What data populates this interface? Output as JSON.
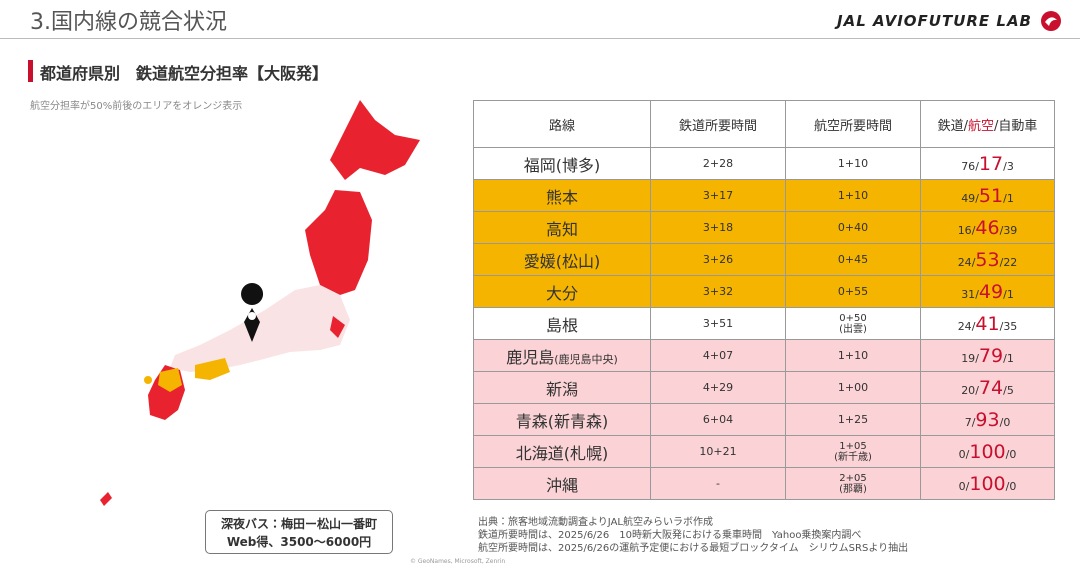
{
  "header": {
    "title": "3.国内線の競合状況",
    "logo": "JAL AVIOFUTURE LAB"
  },
  "section": {
    "title": "都道府県別　鉄道航空分担率【大阪発】",
    "note": "航空分担率が50%前後のエリアをオレンジ表示"
  },
  "bus_box": {
    "line1": "深夜バス：梅田ー松山一番町",
    "line2": "Web得、3500～6000円"
  },
  "map_credit": "© GeoNames, Microsoft, Zenrin",
  "table": {
    "separator": "/",
    "header": {
      "route": "路線",
      "rail_time": "鉄道所要時間",
      "air_time": "航空所要時間",
      "share": {
        "rail": "鉄道",
        "air": "航空",
        "car": "自動車"
      }
    },
    "rows": [
      {
        "route": "福岡(博多)",
        "rail_time": "2+28",
        "air_time": "1+10",
        "rail": 76,
        "air": 17,
        "car": 3,
        "color": "#ffffff"
      },
      {
        "route": "熊本",
        "rail_time": "3+17",
        "air_time": "1+10",
        "rail": 49,
        "air": 51,
        "car": 1,
        "color": "#f5b400"
      },
      {
        "route": "高知",
        "rail_time": "3+18",
        "air_time": "0+40",
        "rail": 16,
        "air": 46,
        "car": 39,
        "color": "#f5b400"
      },
      {
        "route": "愛媛(松山)",
        "rail_time": "3+26",
        "air_time": "0+45",
        "rail": 24,
        "air": 53,
        "car": 22,
        "color": "#f5b400"
      },
      {
        "route": "大分",
        "rail_time": "3+32",
        "air_time": "0+55",
        "rail": 31,
        "air": 49,
        "car": 1,
        "color": "#f5b400"
      },
      {
        "route": "島根",
        "rail_time": "3+51",
        "air_time": "0+50",
        "air_note": "(出雲)",
        "rail": 24,
        "air": 41,
        "car": 35,
        "color": "#ffffff"
      },
      {
        "route": "鹿児島",
        "route_note": "(鹿児島中央)",
        "rail_time": "4+07",
        "air_time": "1+10",
        "rail": 19,
        "air": 79,
        "car": 1,
        "color": "#fbd3d6"
      },
      {
        "route": "新潟",
        "rail_time": "4+29",
        "air_time": "1+00",
        "rail": 20,
        "air": 74,
        "car": 5,
        "color": "#fbd3d6"
      },
      {
        "route": "青森(新青森)",
        "rail_time": "6+04",
        "air_time": "1+25",
        "rail": 7,
        "air": 93,
        "car": 0,
        "color": "#fbd3d6"
      },
      {
        "route": "北海道(札幌)",
        "rail_time": "10+21",
        "air_time": "1+05",
        "air_note": "(新千歳)",
        "rail": 0,
        "air": 100,
        "car": 0,
        "color": "#fbd3d6"
      },
      {
        "route": "沖縄",
        "rail_time": "-",
        "air_time": "2+05",
        "air_note": "(那覇)",
        "rail": 0,
        "air": 100,
        "car": 0,
        "color": "#fbd3d6"
      }
    ]
  },
  "sources": [
    "出典：旅客地域流動調査よりJAL航空みらいラボ作成",
    "鉄道所要時間は、2025/6/26　10時新大阪発における乗車時間　Yahoo乗換案内調べ",
    "航空所要時間は、2025/6/26の運航予定便における最短ブロックタイム　シリウムSRSより抽出"
  ]
}
